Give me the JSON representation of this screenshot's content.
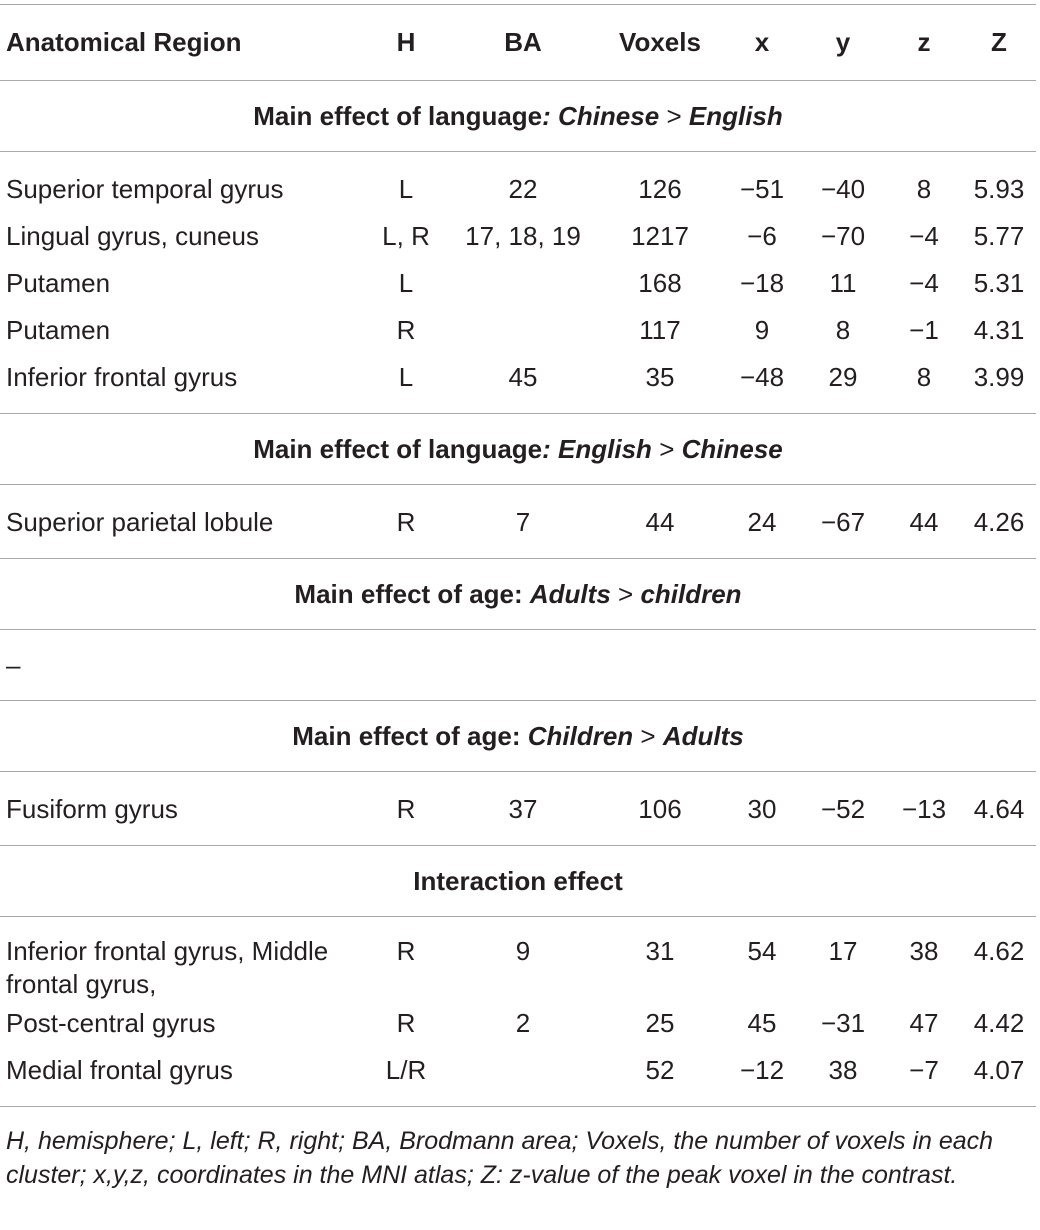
{
  "header": {
    "region": "Anatomical Region",
    "h": "H",
    "ba": "BA",
    "voxels": "Voxels",
    "x": "x",
    "y": "y",
    "z": "z",
    "Z": "Z"
  },
  "sections": [
    {
      "title_lead": "Main effect of language",
      "title_colon": ":",
      "title_a": "Chinese",
      "title_op": ">",
      "title_b": "English",
      "rows": [
        {
          "region": "Superior temporal gyrus",
          "h": "L",
          "ba": "22",
          "voxels": "126",
          "x": "−51",
          "y": "−40",
          "z": "8",
          "Z": "5.93"
        },
        {
          "region": "Lingual gyrus, cuneus",
          "h": "L, R",
          "ba": "17, 18, 19",
          "voxels": "1217",
          "x": "−6",
          "y": "−70",
          "z": "−4",
          "Z": "5.77"
        },
        {
          "region": "Putamen",
          "h": "L",
          "ba": "",
          "voxels": "168",
          "x": "−18",
          "y": "11",
          "z": "−4",
          "Z": "5.31"
        },
        {
          "region": "Putamen",
          "h": "R",
          "ba": "",
          "voxels": "117",
          "x": "9",
          "y": "8",
          "z": "−1",
          "Z": "4.31"
        },
        {
          "region": "Inferior frontal gyrus",
          "h": "L",
          "ba": "45",
          "voxels": "35",
          "x": "−48",
          "y": "29",
          "z": "8",
          "Z": "3.99"
        }
      ]
    },
    {
      "title_lead": "Main effect of language",
      "title_colon": ":",
      "title_a": "English",
      "title_op": ">",
      "title_b": "Chinese",
      "rows": [
        {
          "region": "Superior parietal lobule",
          "h": "R",
          "ba": "7",
          "voxels": "44",
          "x": "24",
          "y": "−67",
          "z": "44",
          "Z": "4.26"
        }
      ]
    },
    {
      "title_lead": "Main effect of age:",
      "title_colon": "",
      "title_a": "Adults",
      "title_op": ">",
      "title_b": "children",
      "empty_mark": "–"
    },
    {
      "title_lead": "Main effect of age:",
      "title_colon": "",
      "title_a": "Children",
      "title_op": ">",
      "title_b": "Adults",
      "rows": [
        {
          "region": "Fusiform gyrus",
          "h": "R",
          "ba": "37",
          "voxels": "106",
          "x": "30",
          "y": "−52",
          "z": "−13",
          "Z": "4.64"
        }
      ]
    },
    {
      "title_lead": "Interaction effect",
      "rows": [
        {
          "region": "Inferior frontal gyrus, Middle frontal gyrus,",
          "h": "R",
          "ba": "9",
          "voxels": "31",
          "x": "54",
          "y": "17",
          "z": "38",
          "Z": "4.62"
        },
        {
          "region": "Post-central gyrus",
          "h": "R",
          "ba": "2",
          "voxels": "25",
          "x": "45",
          "y": "−31",
          "z": "47",
          "Z": "4.42"
        },
        {
          "region": "Medial frontal gyrus",
          "h": "L/R",
          "ba": "",
          "voxels": "52",
          "x": "−12",
          "y": "38",
          "z": "−7",
          "Z": "4.07"
        }
      ]
    }
  ],
  "footnote": "H, hemisphere; L, left; R, right; BA, Brodmann area; Voxels, the number of voxels in each cluster; x,y,z, coordinates in the MNI atlas; Z: z-value of the peak voxel in the contrast."
}
